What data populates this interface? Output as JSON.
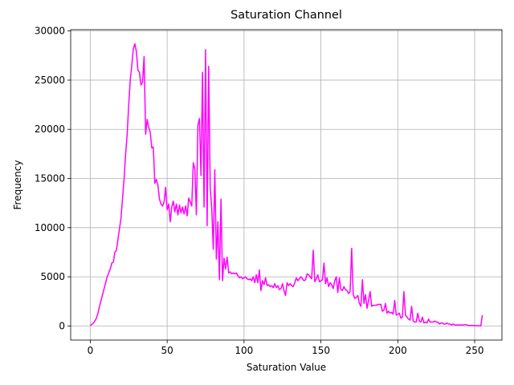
{
  "chart_data": {
    "type": "line",
    "title": "Saturation Channel",
    "x_label": "Saturation Value",
    "y_label": "Frequency",
    "color": "#ff00ff",
    "grid": true,
    "xlim": [
      -12.75,
      267.75
    ],
    "xticks": [
      0,
      50,
      100,
      150,
      200,
      250
    ],
    "ylim": [
      -1435,
      30135
    ],
    "yticks": [
      0,
      5000,
      10000,
      15000,
      20000,
      25000,
      30000
    ],
    "x": [
      0,
      1,
      2,
      3,
      4,
      5,
      6,
      7,
      8,
      9,
      10,
      11,
      12,
      13,
      14,
      15,
      16,
      17,
      18,
      19,
      20,
      21,
      22,
      23,
      24,
      25,
      26,
      27,
      28,
      29,
      30,
      31,
      32,
      33,
      34,
      35,
      36,
      37,
      38,
      39,
      40,
      41,
      42,
      43,
      44,
      45,
      46,
      47,
      48,
      49,
      50,
      51,
      52,
      53,
      54,
      55,
      56,
      57,
      58,
      59,
      60,
      61,
      62,
      63,
      64,
      65,
      66,
      67,
      68,
      69,
      70,
      71,
      72,
      73,
      74,
      75,
      76,
      77,
      78,
      79,
      80,
      81,
      82,
      83,
      84,
      85,
      86,
      87,
      88,
      89,
      90,
      91,
      92,
      93,
      94,
      95,
      96,
      97,
      98,
      99,
      100,
      101,
      102,
      103,
      104,
      105,
      106,
      107,
      108,
      109,
      110,
      111,
      112,
      113,
      114,
      115,
      116,
      117,
      118,
      119,
      120,
      121,
      122,
      123,
      124,
      125,
      126,
      127,
      128,
      129,
      130,
      131,
      132,
      133,
      134,
      135,
      136,
      137,
      138,
      139,
      140,
      141,
      142,
      143,
      144,
      145,
      146,
      147,
      148,
      149,
      150,
      151,
      152,
      153,
      154,
      155,
      156,
      157,
      158,
      159,
      160,
      161,
      162,
      163,
      164,
      165,
      166,
      167,
      168,
      169,
      170,
      171,
      172,
      173,
      174,
      175,
      176,
      177,
      178,
      179,
      180,
      181,
      182,
      183,
      184,
      185,
      186,
      187,
      188,
      189,
      190,
      191,
      192,
      193,
      194,
      195,
      196,
      197,
      198,
      199,
      200,
      201,
      202,
      203,
      204,
      205,
      206,
      207,
      208,
      209,
      210,
      211,
      212,
      213,
      214,
      215,
      216,
      217,
      218,
      219,
      220,
      221,
      222,
      223,
      224,
      225,
      226,
      227,
      228,
      229,
      230,
      231,
      232,
      233,
      234,
      235,
      236,
      237,
      238,
      239,
      240,
      241,
      242,
      243,
      244,
      245,
      246,
      247,
      248,
      249,
      250,
      251,
      252,
      253,
      254,
      255
    ],
    "values": [
      50,
      150,
      300,
      500,
      800,
      1300,
      2000,
      2600,
      3200,
      3800,
      4400,
      5000,
      5400,
      5800,
      6400,
      6500,
      7500,
      7700,
      8800,
      9900,
      11000,
      13000,
      15000,
      17500,
      19500,
      22500,
      25000,
      26500,
      28200,
      28700,
      27900,
      26000,
      25800,
      24500,
      24800,
      27400,
      19500,
      21000,
      20200,
      19700,
      18100,
      18200,
      14500,
      14900,
      14300,
      12900,
      12400,
      12200,
      12600,
      14100,
      11800,
      12400,
      10600,
      12100,
      12700,
      11600,
      12400,
      11300,
      12300,
      11500,
      12100,
      11400,
      12200,
      11200,
      13000,
      12600,
      12200,
      16600,
      16000,
      11300,
      20400,
      21100,
      15300,
      25800,
      12100,
      28100,
      10200,
      26400,
      14000,
      12000,
      7800,
      15900,
      6800,
      10600,
      4700,
      12900,
      4600,
      6900,
      5800,
      7000,
      5400,
      5500,
      5300,
      5400,
      5300,
      5400,
      5100,
      4900,
      5000,
      4800,
      4900,
      5000,
      4800,
      4700,
      4800,
      4600,
      5000,
      4400,
      5200,
      4400,
      5700,
      3600,
      4600,
      4200,
      4900,
      4100,
      4200,
      4000,
      4100,
      3900,
      4300,
      3900,
      4100,
      3700,
      3800,
      4300,
      3600,
      3100,
      4400,
      4100,
      4300,
      4100,
      4000,
      4400,
      4900,
      4600,
      4800,
      5000,
      4800,
      4600,
      4700,
      5300,
      5200,
      5000,
      4800,
      7700,
      4500,
      4800,
      5200,
      4500,
      4600,
      4700,
      6400,
      4300,
      4900,
      4000,
      4400,
      4200,
      3800,
      4600,
      5000,
      3400,
      4900,
      3700,
      3600,
      4000,
      3700,
      3600,
      3300,
      3500,
      7900,
      3200,
      2800,
      2900,
      3100,
      2300,
      2000,
      4700,
      2300,
      3200,
      1800,
      2600,
      3500,
      2000,
      2100,
      2100,
      2100,
      2200,
      2200,
      2200,
      1500,
      1600,
      2300,
      1300,
      1500,
      1300,
      1400,
      1200,
      2600,
      1100,
      1200,
      1300,
      800,
      900,
      3500,
      1100,
      900,
      700,
      600,
      2000,
      500,
      400,
      400,
      1300,
      500,
      400,
      900,
      300,
      400,
      300,
      700,
      400,
      400,
      400,
      500,
      400,
      400,
      200,
      300,
      300,
      200,
      200,
      300,
      200,
      200,
      100,
      200,
      100,
      100,
      100,
      100,
      100,
      100,
      100,
      150,
      100,
      50,
      50,
      50,
      50,
      30,
      30,
      20,
      20,
      10,
      1100
    ]
  }
}
